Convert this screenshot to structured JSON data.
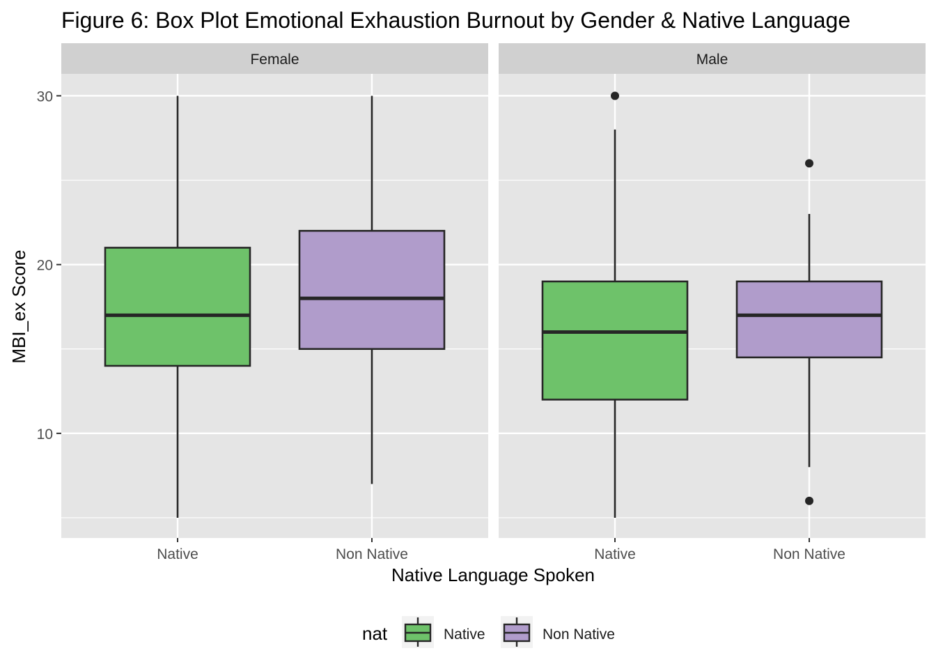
{
  "chart_data": {
    "type": "box",
    "title": "Figure 6: Box Plot Emotional Exhaustion Burnout by Gender & Native Language",
    "xlabel": "Native Language Spoken",
    "ylabel": "MBI_ex Score",
    "ylim": [
      3.8,
      31.3
    ],
    "yticks": [
      10,
      20,
      30
    ],
    "categories": [
      "Native",
      "Non Native"
    ],
    "facets": [
      {
        "label": "Female",
        "boxes": [
          {
            "category": "Native",
            "whisker_low": 5,
            "q1": 14,
            "median": 17,
            "q3": 21,
            "whisker_high": 30,
            "outliers": []
          },
          {
            "category": "Non Native",
            "whisker_low": 7,
            "q1": 15,
            "median": 18,
            "q3": 22,
            "whisker_high": 30,
            "outliers": []
          }
        ]
      },
      {
        "label": "Male",
        "boxes": [
          {
            "category": "Native",
            "whisker_low": 5,
            "q1": 12,
            "median": 16,
            "q3": 19,
            "whisker_high": 28,
            "outliers": [
              30
            ]
          },
          {
            "category": "Non Native",
            "whisker_low": 8,
            "q1": 14.5,
            "median": 17,
            "q3": 19,
            "whisker_high": 23,
            "outliers": [
              26,
              6
            ]
          }
        ]
      }
    ],
    "legend": {
      "title": "nat",
      "position": "bottom",
      "items": [
        {
          "label": "Native",
          "color": "#6EC26A"
        },
        {
          "label": "Non Native",
          "color": "#B09CCB"
        }
      ]
    },
    "colors": {
      "panel_bg": "#E5E5E5",
      "strip_bg": "#D0D0D0",
      "grid": "#FFFFFF",
      "box_line": "#262626"
    },
    "grid": true
  }
}
